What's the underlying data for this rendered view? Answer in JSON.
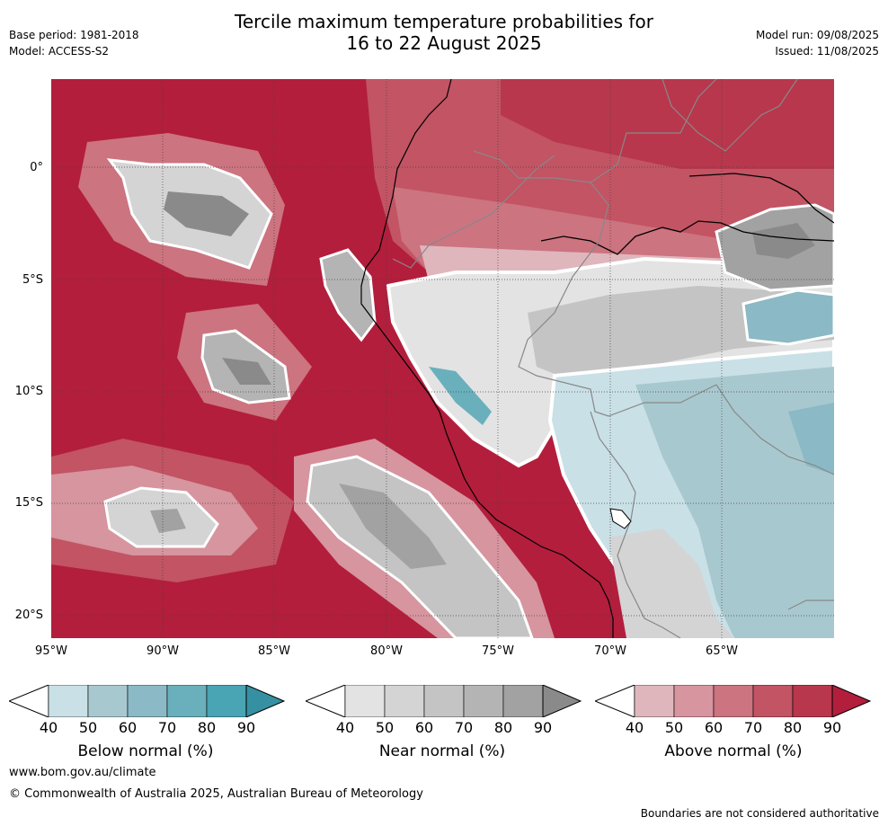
{
  "title": {
    "line1": "Tercile maximum temperature probabilities for",
    "line2": "16 to 22 August 2025"
  },
  "meta": {
    "base_period": "Base period: 1981-2018",
    "model": "Model: ACCESS-S2",
    "model_run": "Model run: 09/08/2025",
    "issued": "Issued: 11/08/2025"
  },
  "axes": {
    "lat_labels": [
      "0°",
      "5°S",
      "10°S",
      "15°S",
      "20°S"
    ],
    "lon_labels": [
      "95°W",
      "90°W",
      "85°W",
      "80°W",
      "75°W",
      "70°W",
      "65°W"
    ]
  },
  "colorbars": [
    {
      "label": "Below normal (%)",
      "ticks": [
        "40",
        "50",
        "60",
        "70",
        "80",
        "90"
      ],
      "colors": [
        "#c9e0e6",
        "#a8c8cf",
        "#8bb9c5",
        "#6ab0bc",
        "#49a4b4",
        "#3590a2"
      ]
    },
    {
      "label": "Near normal (%)",
      "ticks": [
        "40",
        "50",
        "60",
        "70",
        "80",
        "90"
      ],
      "colors": [
        "#e3e3e3",
        "#d4d4d4",
        "#c4c4c4",
        "#b4b4b4",
        "#a2a2a2",
        "#8a8a8a"
      ]
    },
    {
      "label": "Above normal (%)",
      "ticks": [
        "40",
        "50",
        "60",
        "70",
        "80",
        "90"
      ],
      "colors": [
        "#e0b6bd",
        "#d6959f",
        "#cc7480",
        "#c25464",
        "#b8374c",
        "#b31e3c"
      ]
    }
  ],
  "footer": {
    "website": "www.bom.gov.au/climate",
    "copyright": "© Commonwealth of Australia 2025, Australian Bureau of Meteorology",
    "disclaimer": "Boundaries are not considered authoritative"
  }
}
